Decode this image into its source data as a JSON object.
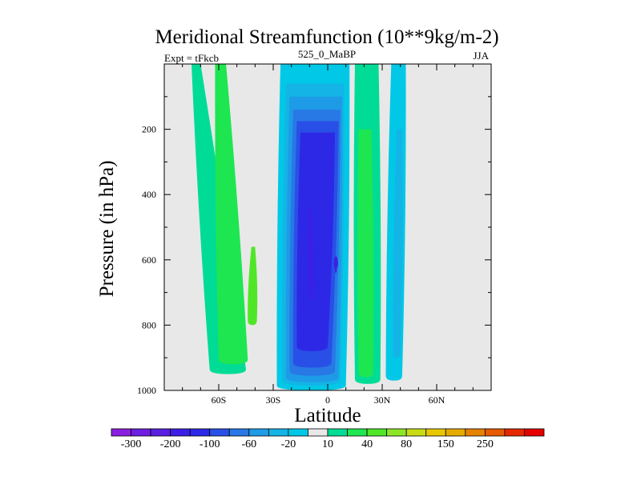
{
  "chart_data": {
    "type": "heatmap",
    "title": "Meridional Streamfunction (10**9kg/m-2)",
    "left_label": "Expt = tFkcb",
    "center_label": "525_0_MaBP",
    "right_label": "JJA",
    "xlabel": "Latitude",
    "ylabel": "Pressure (in hPa)",
    "xlim": [
      -90,
      90
    ],
    "ylim": [
      1000,
      0
    ],
    "x_ticks": [
      {
        "value": -60,
        "label": "60S"
      },
      {
        "value": -30,
        "label": "30S"
      },
      {
        "value": 0,
        "label": "0"
      },
      {
        "value": 30,
        "label": "30N"
      },
      {
        "value": 60,
        "label": "60N"
      }
    ],
    "y_ticks": [
      {
        "value": 200,
        "label": "200"
      },
      {
        "value": 400,
        "label": "400"
      },
      {
        "value": 600,
        "label": "600"
      },
      {
        "value": 800,
        "label": "800"
      },
      {
        "value": 1000,
        "label": "1000"
      }
    ],
    "background_color": "#e8e8e8",
    "colorbar": {
      "colors": [
        "#8a1ee0",
        "#6e1ee0",
        "#5a1ee0",
        "#3c1ee6",
        "#2d28e6",
        "#2850e6",
        "#2878e6",
        "#1e9be6",
        "#14b4e6",
        "#00c8e6",
        "#e8e8e8",
        "#00dc96",
        "#1ee650",
        "#50e628",
        "#8ce628",
        "#c8dc14",
        "#e6c800",
        "#e6aa00",
        "#e68200",
        "#e65a00",
        "#e62800",
        "#e60000"
      ],
      "labels": [
        {
          "after_box": 1,
          "text": "-300"
        },
        {
          "after_box": 3,
          "text": "-200"
        },
        {
          "after_box": 5,
          "text": "-100"
        },
        {
          "after_box": 7,
          "text": "-60"
        },
        {
          "after_box": 9,
          "text": "-20"
        },
        {
          "after_box": 11,
          "text": "10"
        },
        {
          "after_box": 13,
          "text": "40"
        },
        {
          "after_box": 15,
          "text": "80"
        },
        {
          "after_box": 17,
          "text": "150"
        },
        {
          "after_box": 19,
          "text": "250"
        }
      ]
    },
    "contour_bands": [
      {
        "name": "southern-outer",
        "color": "#00dc96",
        "lat_top": [
          -75,
          -70
        ],
        "lat_bottom": [
          -65,
          -45
        ],
        "p_top": 0,
        "p_bottom": 950
      },
      {
        "name": "southern-cell",
        "color": "#1ee650",
        "lat_top": [
          -62,
          -56
        ],
        "lat_bottom": [
          -60,
          -44
        ],
        "p_top": 0,
        "p_bottom": 920
      },
      {
        "name": "southern-max",
        "color": "#50e628",
        "lat_top": [
          -42,
          -40
        ],
        "lat_bottom": [
          -44,
          -39
        ],
        "p_top": 560,
        "p_bottom": 800
      },
      {
        "name": "tropical-outer",
        "color": "#00c8e6",
        "lat_top": [
          -26,
          12
        ],
        "lat_bottom": [
          -28,
          10
        ],
        "p_top": 0,
        "p_bottom": 1000
      },
      {
        "name": "tropical-ring-1",
        "color": "#14b4e6",
        "lat_top": [
          -23,
          9
        ],
        "lat_bottom": [
          -25,
          7
        ],
        "p_top": 60,
        "p_bottom": 985
      },
      {
        "name": "tropical-ring-2",
        "color": "#1e9be6",
        "lat_top": [
          -21,
          8
        ],
        "lat_bottom": [
          -23,
          6
        ],
        "p_top": 100,
        "p_bottom": 975
      },
      {
        "name": "tropical-ring-3",
        "color": "#2878e6",
        "lat_top": [
          -19,
          7
        ],
        "lat_bottom": [
          -21,
          4
        ],
        "p_top": 140,
        "p_bottom": 955
      },
      {
        "name": "tropical-ring-4",
        "color": "#2850e6",
        "lat_top": [
          -17,
          6
        ],
        "lat_bottom": [
          -19,
          2
        ],
        "p_top": 175,
        "p_bottom": 930
      },
      {
        "name": "tropical-core",
        "color": "#2d28e6",
        "lat_top": [
          -15,
          4
        ],
        "lat_bottom": [
          -17,
          0
        ],
        "p_top": 210,
        "p_bottom": 880
      },
      {
        "name": "tropical-max-left",
        "color": "#3c1ee6",
        "lat_top": [
          -10,
          -9
        ],
        "lat_bottom": [
          -10,
          -8
        ],
        "p_top": 440,
        "p_bottom": 720
      },
      {
        "name": "tropical-max-right",
        "color": "#3c1ee6",
        "lat_top": [
          4,
          5
        ],
        "lat_bottom": [
          4,
          5
        ],
        "p_top": 590,
        "p_bottom": 640
      },
      {
        "name": "northern-green",
        "color": "#00dc96",
        "lat_top": [
          15,
          28
        ],
        "lat_bottom": [
          15,
          29
        ],
        "p_top": 0,
        "p_bottom": 980
      },
      {
        "name": "northern-green-core",
        "color": "#1ee650",
        "lat_top": [
          17,
          24
        ],
        "lat_bottom": [
          17,
          25
        ],
        "p_top": 200,
        "p_bottom": 960
      },
      {
        "name": "northern-blue",
        "color": "#00c8e6",
        "lat_top": [
          35,
          43
        ],
        "lat_bottom": [
          32,
          41
        ],
        "p_top": 0,
        "p_bottom": 970
      },
      {
        "name": "northern-blue-inner",
        "color": "#14b4e6",
        "lat_top": [
          38,
          41
        ],
        "lat_bottom": [
          36,
          40
        ],
        "p_top": 200,
        "p_bottom": 900
      }
    ]
  }
}
